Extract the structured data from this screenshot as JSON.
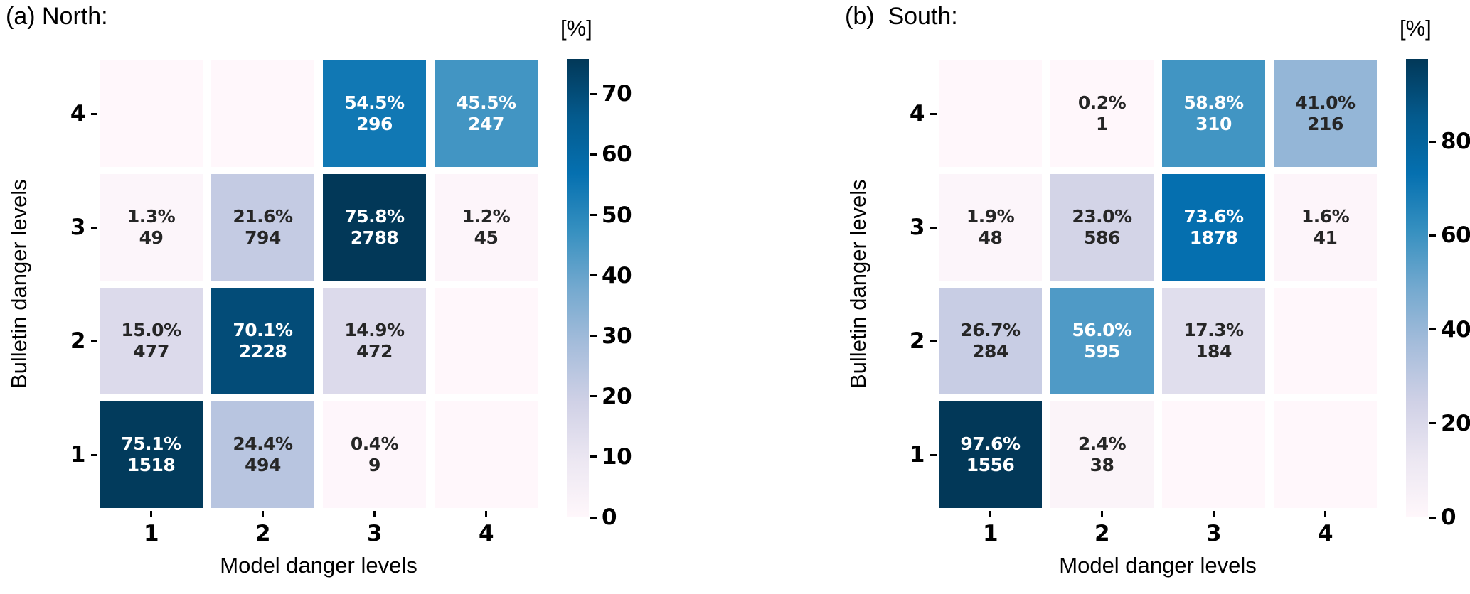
{
  "figure": {
    "background": "#ffffff"
  },
  "colors": {
    "colormap_name": "PuBu",
    "colormap_stops": [
      "#fff7fb",
      "#ece7f2",
      "#d0d1e6",
      "#a6bddb",
      "#74a9cf",
      "#3690c0",
      "#0570b0",
      "#045a8d",
      "#023858"
    ],
    "cell_text_dark": "#262626",
    "cell_text_light": "#ffffff",
    "axis_text": "#000000"
  },
  "chart_data": [
    {
      "type": "heatmap",
      "title": "(a) North:",
      "xlabel": "Model danger levels",
      "ylabel": "Bulletin danger levels",
      "x_tick_labels": [
        "1",
        "2",
        "3",
        "4"
      ],
      "y_tick_labels": [
        "4",
        "3",
        "2",
        "1"
      ],
      "colorbar": {
        "label": "[%]",
        "ticks": [
          0,
          10,
          20,
          30,
          40,
          50,
          60,
          70
        ],
        "vmin": 0,
        "vmax": 75.8
      },
      "cells": [
        [
          null,
          null,
          {
            "pct": 54.5,
            "count": 296
          },
          {
            "pct": 45.5,
            "count": 247
          }
        ],
        [
          {
            "pct": 1.3,
            "count": 49
          },
          {
            "pct": 21.6,
            "count": 794
          },
          {
            "pct": 75.8,
            "count": 2788
          },
          {
            "pct": 1.2,
            "count": 45
          }
        ],
        [
          {
            "pct": 15.0,
            "count": 477
          },
          {
            "pct": 70.1,
            "count": 2228
          },
          {
            "pct": 14.9,
            "count": 472
          },
          null
        ],
        [
          {
            "pct": 75.1,
            "count": 1518
          },
          {
            "pct": 24.4,
            "count": 494
          },
          {
            "pct": 0.4,
            "count": 9
          },
          null
        ]
      ]
    },
    {
      "type": "heatmap",
      "title": "(b)  South:",
      "xlabel": "Model danger levels",
      "ylabel": "Bulletin danger levels",
      "x_tick_labels": [
        "1",
        "2",
        "3",
        "4"
      ],
      "y_tick_labels": [
        "4",
        "3",
        "2",
        "1"
      ],
      "colorbar": {
        "label": "[%]",
        "ticks": [
          0,
          20,
          40,
          60,
          80
        ],
        "vmin": 0,
        "vmax": 97.6
      },
      "cells": [
        [
          null,
          {
            "pct": 0.2,
            "count": 1
          },
          {
            "pct": 58.8,
            "count": 310
          },
          {
            "pct": 41.0,
            "count": 216
          }
        ],
        [
          {
            "pct": 1.9,
            "count": 48
          },
          {
            "pct": 23.0,
            "count": 586
          },
          {
            "pct": 73.6,
            "count": 1878
          },
          {
            "pct": 1.6,
            "count": 41
          }
        ],
        [
          {
            "pct": 26.7,
            "count": 284
          },
          {
            "pct": 56.0,
            "count": 595
          },
          {
            "pct": 17.3,
            "count": 184
          },
          null
        ],
        [
          {
            "pct": 97.6,
            "count": 1556
          },
          {
            "pct": 2.4,
            "count": 38
          },
          null,
          null
        ]
      ]
    }
  ]
}
